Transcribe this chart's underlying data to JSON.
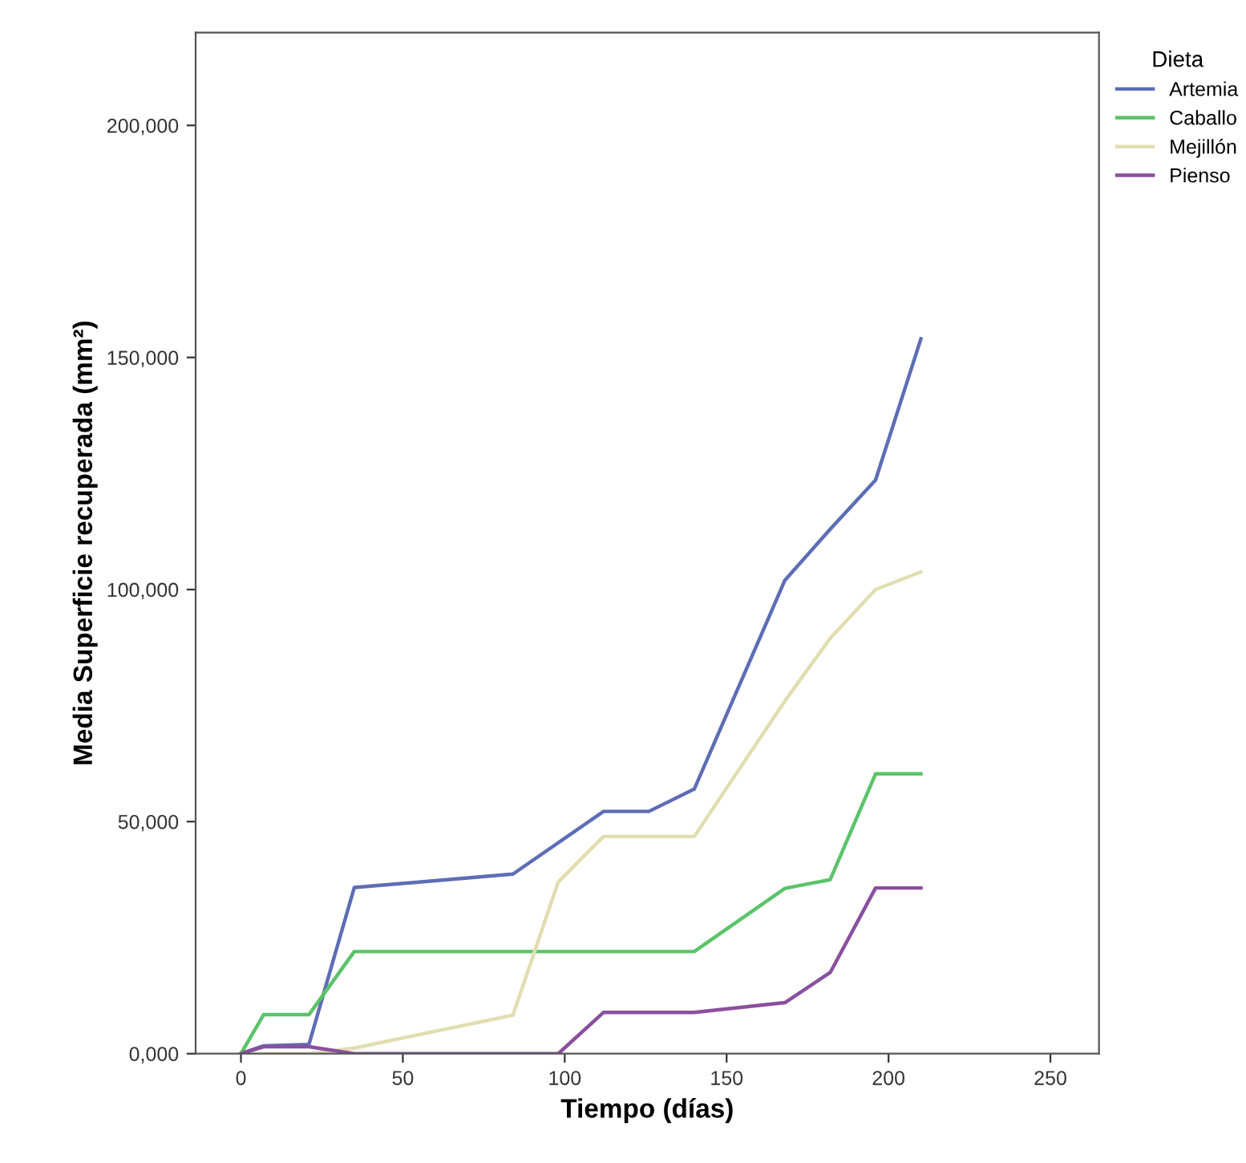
{
  "chart_data": {
    "type": "line",
    "xlabel": "Tiempo (días)",
    "ylabel": "Media Superficie recuperada (mm²)",
    "legend_title": "Dieta",
    "legend": "top right",
    "grid": false,
    "marker": "none",
    "line_style": "solid",
    "xlim": [
      -14,
      265
    ],
    "xticks": [
      0,
      50,
      100,
      150,
      200,
      250
    ],
    "ylim": [
      0,
      220000
    ],
    "yticks": [
      {
        "value": 0,
        "label": "0,000"
      },
      {
        "value": 50000,
        "label": "50,000"
      },
      {
        "value": 100000,
        "label": "100,000"
      },
      {
        "value": 150000,
        "label": "150,000"
      },
      {
        "value": 200000,
        "label": "200,000"
      }
    ],
    "series": [
      {
        "name": "Artemia",
        "color": "#5d6db5",
        "x": [
          0,
          7,
          21,
          35,
          84,
          112,
          126,
          140,
          168,
          182,
          196,
          210
        ],
        "values": [
          0,
          1700,
          2000,
          35800,
          38700,
          52200,
          52200,
          57000,
          102000,
          113000,
          123600,
          154000
        ]
      },
      {
        "name": "Caballo",
        "color": "#5cc36a",
        "x": [
          0,
          7,
          21,
          35,
          140,
          168,
          182,
          196,
          210
        ],
        "values": [
          0,
          8400,
          8400,
          22000,
          22000,
          35600,
          37500,
          60300,
          60300
        ]
      },
      {
        "name": "Mejillón",
        "color": "#e2ddb0",
        "x": [
          0,
          21,
          35,
          84,
          98,
          112,
          140,
          168,
          182,
          196,
          210
        ],
        "values": [
          0,
          0,
          1200,
          8300,
          37000,
          46800,
          46800,
          76000,
          89500,
          100000,
          103800
        ]
      },
      {
        "name": "Pienso",
        "color": "#8a4f9e",
        "x": [
          0,
          7,
          21,
          35,
          98,
          112,
          140,
          168,
          182,
          196,
          210
        ],
        "values": [
          0,
          1500,
          1500,
          0,
          0,
          8900,
          8900,
          11000,
          17500,
          35700,
          35700
        ]
      }
    ]
  }
}
